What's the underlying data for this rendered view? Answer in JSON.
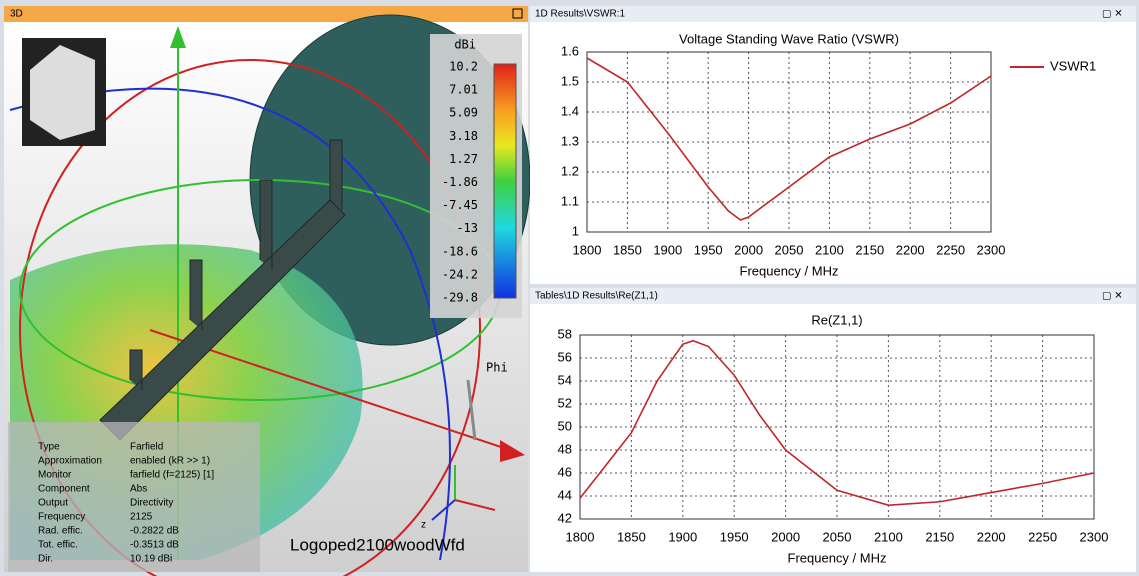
{
  "panel_3d": {
    "title": "3D",
    "model_name": "Logoped2100woodWfd",
    "axis_label": "Phi",
    "z_label": "z",
    "colorbar": {
      "unit": "dBi",
      "labels": [
        10.2,
        7.01,
        5.09,
        3.18,
        1.27,
        -1.86,
        -7.45,
        -13,
        -18.6,
        -24.2,
        -29.8
      ]
    },
    "info": [
      [
        "Type",
        "Farfield"
      ],
      [
        "Approximation",
        "enabled (kR >> 1)"
      ],
      [
        "Monitor",
        "farfield (f=2125) [1]"
      ],
      [
        "Component",
        "Abs"
      ],
      [
        "Output",
        "Directivity"
      ],
      [
        "Frequency",
        "2125"
      ],
      [
        "Rad. effic.",
        "-0.2822 dB"
      ],
      [
        "Tot. effic.",
        "-0.3513 dB"
      ],
      [
        "Dir.",
        "10.19 dBi"
      ]
    ]
  },
  "panels": [
    "1D Results\\VSWR:1",
    "Tables\\1D Results\\Re(Z1,1)"
  ],
  "chart_data": [
    {
      "type": "line",
      "title": "Voltage Standing Wave Ratio (VSWR)",
      "x_label": "Frequency / MHz",
      "x": [
        1800,
        1850,
        1900,
        1950,
        1975,
        1990,
        2000,
        2050,
        2100,
        2150,
        2200,
        2250,
        2300
      ],
      "series": [
        {
          "name": "VSWR1",
          "color": "#c0262b",
          "values": [
            1.58,
            1.5,
            1.33,
            1.15,
            1.07,
            1.04,
            1.05,
            1.15,
            1.25,
            1.31,
            1.36,
            1.43,
            1.52
          ]
        }
      ],
      "xlim": [
        1800,
        2300
      ],
      "xticks": [
        1800,
        1850,
        1900,
        1950,
        2000,
        2050,
        2100,
        2150,
        2200,
        2250,
        2300
      ],
      "ylim": [
        1,
        1.6
      ],
      "yticks": [
        1,
        1.1,
        1.2,
        1.3,
        1.4,
        1.5,
        1.6
      ],
      "grid": true,
      "legend": "outside-right"
    },
    {
      "type": "line",
      "title": "Re(Z1,1)",
      "x_label": "Frequency / MHz",
      "x": [
        1800,
        1850,
        1875,
        1900,
        1910,
        1925,
        1950,
        1975,
        2000,
        2050,
        2100,
        2150,
        2200,
        2250,
        2300
      ],
      "series": [
        {
          "color": "#c0262b",
          "values": [
            43.8,
            49.5,
            54,
            57.2,
            57.5,
            57,
            54.5,
            51,
            48,
            44.5,
            43.2,
            43.5,
            44.3,
            45.1,
            46
          ]
        }
      ],
      "xlim": [
        1800,
        2300
      ],
      "xticks": [
        1800,
        1850,
        1900,
        1950,
        2000,
        2050,
        2100,
        2150,
        2200,
        2250,
        2300
      ],
      "ylim": [
        42,
        58
      ],
      "yticks": [
        42,
        44,
        46,
        48,
        50,
        52,
        54,
        56,
        58
      ],
      "grid": true
    }
  ]
}
